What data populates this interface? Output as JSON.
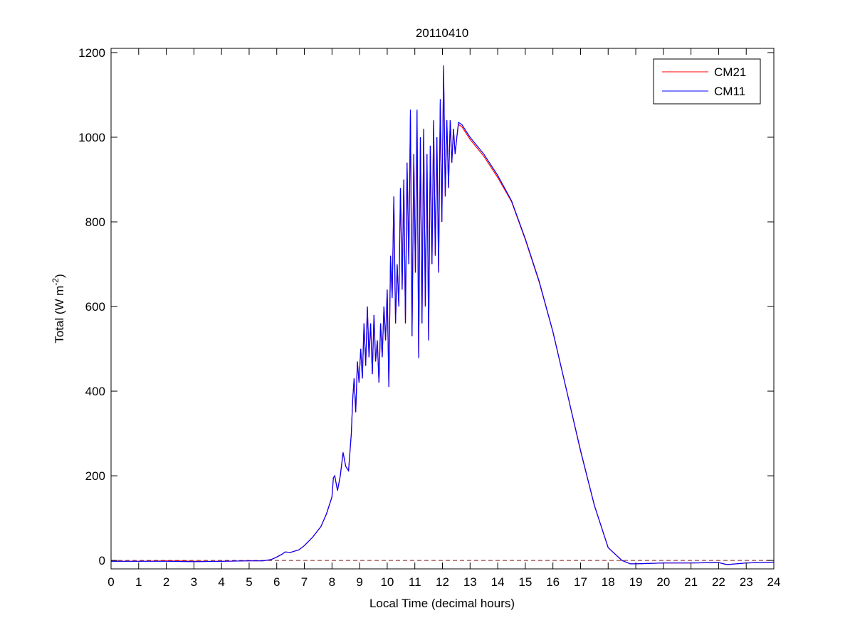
{
  "chart_data": {
    "type": "line",
    "title": "20110410",
    "xlabel": "Local Time (decimal hours)",
    "ylabel_main": "Total (W m",
    "ylabel_sup": "-2",
    "ylabel_close": ")",
    "xlim": [
      0,
      24
    ],
    "ylim": [
      -20,
      1210
    ],
    "xticks": [
      0,
      1,
      2,
      3,
      4,
      5,
      6,
      7,
      8,
      9,
      10,
      11,
      12,
      13,
      14,
      15,
      16,
      17,
      18,
      19,
      20,
      21,
      22,
      23,
      24
    ],
    "yticks": [
      0,
      200,
      400,
      600,
      800,
      1000,
      1200
    ],
    "grid": false,
    "legend": {
      "placement": "top-right",
      "entries": [
        "CM21",
        "CM11"
      ]
    },
    "reference_line": {
      "y": 0,
      "style": "dashed",
      "color": "#8b1a1a"
    },
    "series": [
      {
        "name": "CM21",
        "color": "#ff0000",
        "points": [
          [
            0,
            -2
          ],
          [
            1,
            -2
          ],
          [
            2,
            -1
          ],
          [
            3,
            -2
          ],
          [
            4,
            -2
          ],
          [
            5,
            -1
          ],
          [
            5.5,
            -1
          ],
          [
            5.8,
            2
          ],
          [
            6,
            8
          ],
          [
            6.2,
            15
          ],
          [
            6.3,
            20
          ],
          [
            6.5,
            19
          ],
          [
            6.8,
            25
          ],
          [
            7,
            35
          ],
          [
            7.3,
            55
          ],
          [
            7.6,
            80
          ],
          [
            7.8,
            110
          ],
          [
            8,
            150
          ],
          [
            8.05,
            195
          ],
          [
            8.1,
            200
          ],
          [
            8.2,
            165
          ],
          [
            8.3,
            200
          ],
          [
            8.4,
            255
          ],
          [
            8.5,
            222
          ],
          [
            8.6,
            212
          ],
          [
            8.7,
            300
          ],
          [
            8.75,
            380
          ],
          [
            8.8,
            430
          ],
          [
            8.86,
            350
          ],
          [
            8.92,
            470
          ],
          [
            8.98,
            420
          ],
          [
            9.04,
            500
          ],
          [
            9.1,
            430
          ],
          [
            9.16,
            560
          ],
          [
            9.22,
            460
          ],
          [
            9.28,
            600
          ],
          [
            9.34,
            480
          ],
          [
            9.4,
            560
          ],
          [
            9.46,
            440
          ],
          [
            9.52,
            580
          ],
          [
            9.58,
            470
          ],
          [
            9.64,
            520
          ],
          [
            9.7,
            420
          ],
          [
            9.76,
            560
          ],
          [
            9.82,
            480
          ],
          [
            9.88,
            600
          ],
          [
            9.94,
            520
          ],
          [
            10.0,
            640
          ],
          [
            10.06,
            410
          ],
          [
            10.12,
            720
          ],
          [
            10.18,
            620
          ],
          [
            10.24,
            860
          ],
          [
            10.3,
            560
          ],
          [
            10.36,
            700
          ],
          [
            10.42,
            600
          ],
          [
            10.48,
            880
          ],
          [
            10.54,
            640
          ],
          [
            10.6,
            900
          ],
          [
            10.66,
            560
          ],
          [
            10.72,
            940
          ],
          [
            10.78,
            700
          ],
          [
            10.84,
            1050
          ],
          [
            10.9,
            530
          ],
          [
            10.96,
            960
          ],
          [
            11.02,
            680
          ],
          [
            11.08,
            1060
          ],
          [
            11.14,
            480
          ],
          [
            11.2,
            1000
          ],
          [
            11.26,
            560
          ],
          [
            11.32,
            1020
          ],
          [
            11.38,
            600
          ],
          [
            11.44,
            960
          ],
          [
            11.5,
            520
          ],
          [
            11.56,
            980
          ],
          [
            11.62,
            700
          ],
          [
            11.68,
            1040
          ],
          [
            11.74,
            720
          ],
          [
            11.8,
            1000
          ],
          [
            11.86,
            680
          ],
          [
            11.92,
            1080
          ],
          [
            11.98,
            800
          ],
          [
            12.04,
            1160
          ],
          [
            12.1,
            860
          ],
          [
            12.16,
            1040
          ],
          [
            12.22,
            880
          ],
          [
            12.28,
            1040
          ],
          [
            12.34,
            940
          ],
          [
            12.4,
            1020
          ],
          [
            12.46,
            960
          ],
          [
            12.52,
            1000
          ],
          [
            12.58,
            1030
          ],
          [
            12.7,
            1025
          ],
          [
            13,
            995
          ],
          [
            13.5,
            955
          ],
          [
            14,
            905
          ],
          [
            14.5,
            848
          ],
          [
            15,
            758
          ],
          [
            15.5,
            658
          ],
          [
            16,
            540
          ],
          [
            16.5,
            400
          ],
          [
            17,
            258
          ],
          [
            17.5,
            130
          ],
          [
            18,
            30
          ],
          [
            18.5,
            0
          ],
          [
            18.8,
            -8
          ],
          [
            19,
            -8
          ],
          [
            20,
            -6
          ],
          [
            21,
            -6
          ],
          [
            22,
            -5
          ],
          [
            22.3,
            -10
          ],
          [
            23,
            -6
          ],
          [
            24,
            -4
          ]
        ]
      },
      {
        "name": "CM11",
        "color": "#0000ff",
        "points": [
          [
            0,
            -2
          ],
          [
            1,
            -2
          ],
          [
            2,
            -2
          ],
          [
            3,
            -3
          ],
          [
            4,
            -2
          ],
          [
            5,
            -1
          ],
          [
            5.5,
            -1
          ],
          [
            5.8,
            2
          ],
          [
            6,
            8
          ],
          [
            6.2,
            15
          ],
          [
            6.3,
            20
          ],
          [
            6.5,
            19
          ],
          [
            6.8,
            25
          ],
          [
            7,
            35
          ],
          [
            7.3,
            55
          ],
          [
            7.6,
            80
          ],
          [
            7.8,
            110
          ],
          [
            8,
            150
          ],
          [
            8.05,
            195
          ],
          [
            8.1,
            200
          ],
          [
            8.2,
            165
          ],
          [
            8.3,
            200
          ],
          [
            8.4,
            255
          ],
          [
            8.5,
            222
          ],
          [
            8.6,
            212
          ],
          [
            8.7,
            300
          ],
          [
            8.75,
            380
          ],
          [
            8.8,
            430
          ],
          [
            8.86,
            350
          ],
          [
            8.92,
            470
          ],
          [
            8.98,
            420
          ],
          [
            9.04,
            500
          ],
          [
            9.1,
            430
          ],
          [
            9.16,
            560
          ],
          [
            9.22,
            460
          ],
          [
            9.28,
            600
          ],
          [
            9.34,
            480
          ],
          [
            9.4,
            560
          ],
          [
            9.46,
            440
          ],
          [
            9.52,
            580
          ],
          [
            9.58,
            470
          ],
          [
            9.64,
            520
          ],
          [
            9.7,
            420
          ],
          [
            9.76,
            560
          ],
          [
            9.82,
            480
          ],
          [
            9.88,
            600
          ],
          [
            9.94,
            520
          ],
          [
            10.0,
            640
          ],
          [
            10.06,
            410
          ],
          [
            10.12,
            720
          ],
          [
            10.18,
            620
          ],
          [
            10.24,
            860
          ],
          [
            10.3,
            560
          ],
          [
            10.36,
            700
          ],
          [
            10.42,
            600
          ],
          [
            10.48,
            880
          ],
          [
            10.54,
            640
          ],
          [
            10.6,
            900
          ],
          [
            10.66,
            560
          ],
          [
            10.72,
            940
          ],
          [
            10.78,
            700
          ],
          [
            10.84,
            1065
          ],
          [
            10.9,
            530
          ],
          [
            10.96,
            960
          ],
          [
            11.02,
            680
          ],
          [
            11.08,
            1065
          ],
          [
            11.14,
            478
          ],
          [
            11.2,
            1000
          ],
          [
            11.26,
            560
          ],
          [
            11.32,
            1020
          ],
          [
            11.38,
            600
          ],
          [
            11.44,
            960
          ],
          [
            11.5,
            520
          ],
          [
            11.56,
            980
          ],
          [
            11.62,
            700
          ],
          [
            11.68,
            1040
          ],
          [
            11.74,
            720
          ],
          [
            11.8,
            1000
          ],
          [
            11.86,
            680
          ],
          [
            11.92,
            1090
          ],
          [
            11.98,
            800
          ],
          [
            12.04,
            1170
          ],
          [
            12.1,
            860
          ],
          [
            12.16,
            1040
          ],
          [
            12.22,
            880
          ],
          [
            12.28,
            1040
          ],
          [
            12.34,
            940
          ],
          [
            12.4,
            1020
          ],
          [
            12.46,
            960
          ],
          [
            12.52,
            1000
          ],
          [
            12.58,
            1035
          ],
          [
            12.7,
            1030
          ],
          [
            13,
            1000
          ],
          [
            13.5,
            960
          ],
          [
            14,
            910
          ],
          [
            14.5,
            850
          ],
          [
            15,
            760
          ],
          [
            15.5,
            660
          ],
          [
            16,
            540
          ],
          [
            16.5,
            400
          ],
          [
            17,
            260
          ],
          [
            17.5,
            130
          ],
          [
            18,
            30
          ],
          [
            18.5,
            0
          ],
          [
            18.8,
            -8
          ],
          [
            19,
            -8
          ],
          [
            20,
            -6
          ],
          [
            21,
            -6
          ],
          [
            22,
            -5
          ],
          [
            22.3,
            -10
          ],
          [
            23,
            -6
          ],
          [
            24,
            -4
          ]
        ]
      }
    ]
  }
}
